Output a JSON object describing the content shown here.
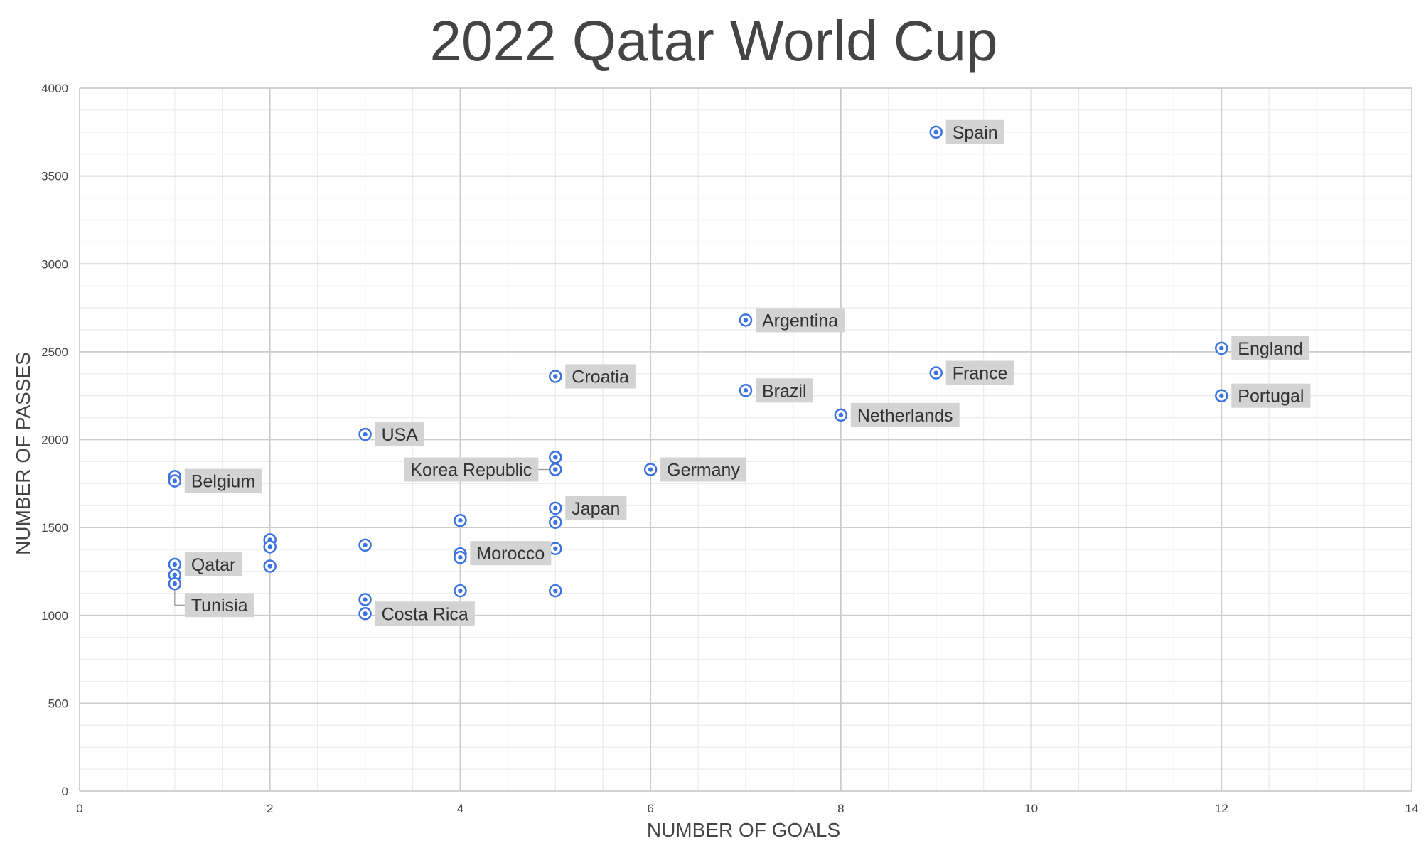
{
  "chart_data": {
    "type": "scatter",
    "title": "2022 Qatar World Cup",
    "xlabel": "NUMBER OF GOALS",
    "ylabel": "NUMBER OF PASSES",
    "xlim": [
      0,
      14
    ],
    "ylim": [
      0,
      4000
    ],
    "x_ticks": [
      "0",
      "2",
      "4",
      "6",
      "8",
      "10",
      "12",
      "14"
    ],
    "y_ticks": [
      "0",
      "500",
      "1000",
      "1500",
      "2000",
      "2500",
      "3000",
      "3500",
      "4000"
    ],
    "grid": true,
    "legend": "none",
    "colors": {
      "point": "#3c73e0",
      "label_bg": "#d3d3d3",
      "grid_major": "#cccccc",
      "grid_minor": "#ececec",
      "text": "#444444"
    },
    "points": [
      {
        "x": 9,
        "y": 3750,
        "label": "Spain"
      },
      {
        "x": 7,
        "y": 2680,
        "label": "Argentina"
      },
      {
        "x": 12,
        "y": 2520,
        "label": "England"
      },
      {
        "x": 9,
        "y": 2380,
        "label": "France"
      },
      {
        "x": 5,
        "y": 2360,
        "label": "Croatia"
      },
      {
        "x": 7,
        "y": 2280,
        "label": "Brazil"
      },
      {
        "x": 12,
        "y": 2250,
        "label": "Portugal"
      },
      {
        "x": 8,
        "y": 2140,
        "label": "Netherlands"
      },
      {
        "x": 3,
        "y": 2030,
        "label": "USA"
      },
      {
        "x": 5,
        "y": 1900,
        "label": ""
      },
      {
        "x": 5,
        "y": 1830,
        "label": "Korea Republic"
      },
      {
        "x": 6,
        "y": 1830,
        "label": "Germany"
      },
      {
        "x": 1,
        "y": 1790,
        "label": ""
      },
      {
        "x": 1,
        "y": 1765,
        "label": "Belgium"
      },
      {
        "x": 5,
        "y": 1610,
        "label": "Japan"
      },
      {
        "x": 4,
        "y": 1540,
        "label": ""
      },
      {
        "x": 5,
        "y": 1530,
        "label": ""
      },
      {
        "x": 2,
        "y": 1430,
        "label": ""
      },
      {
        "x": 3,
        "y": 1400,
        "label": ""
      },
      {
        "x": 2,
        "y": 1390,
        "label": ""
      },
      {
        "x": 5,
        "y": 1380,
        "label": ""
      },
      {
        "x": 4,
        "y": 1350,
        "label": ""
      },
      {
        "x": 4,
        "y": 1330,
        "label": "Morocco"
      },
      {
        "x": 1,
        "y": 1290,
        "label": "Qatar"
      },
      {
        "x": 2,
        "y": 1280,
        "label": ""
      },
      {
        "x": 1,
        "y": 1230,
        "label": ""
      },
      {
        "x": 1,
        "y": 1180,
        "label": "Tunisia"
      },
      {
        "x": 4,
        "y": 1140,
        "label": ""
      },
      {
        "x": 5,
        "y": 1140,
        "label": ""
      },
      {
        "x": 3,
        "y": 1090,
        "label": ""
      },
      {
        "x": 3,
        "y": 1010,
        "label": "Costa Rica"
      }
    ]
  }
}
